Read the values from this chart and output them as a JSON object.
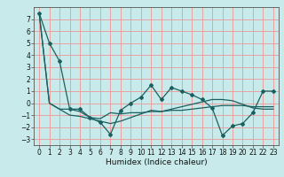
{
  "title": "",
  "xlabel": "Humidex (Indice chaleur)",
  "xlim": [
    -0.5,
    23.5
  ],
  "ylim": [
    -3.5,
    8.0
  ],
  "yticks": [
    -3,
    -2,
    -1,
    0,
    1,
    2,
    3,
    4,
    5,
    6,
    7
  ],
  "xticks": [
    0,
    1,
    2,
    3,
    4,
    5,
    6,
    7,
    8,
    9,
    10,
    11,
    12,
    13,
    14,
    15,
    16,
    17,
    18,
    19,
    20,
    21,
    22,
    23
  ],
  "background_color": "#c8eaea",
  "grid_color": "#e8a0a0",
  "line_color": "#1a6060",
  "series": [
    [
      7.5,
      5.0,
      3.5,
      -0.5,
      -0.5,
      -1.2,
      -1.6,
      -2.6,
      -0.6,
      0.0,
      0.5,
      1.5,
      0.3,
      1.3,
      1.0,
      0.7,
      0.3,
      -0.4,
      -2.7,
      -1.9,
      -1.7,
      -0.8,
      1.0,
      1.0
    ],
    [
      7.5,
      0.0,
      -0.5,
      -0.5,
      -0.7,
      -1.2,
      -1.3,
      -0.8,
      -0.9,
      -0.8,
      -0.8,
      -0.7,
      -0.7,
      -0.6,
      -0.6,
      -0.5,
      -0.4,
      -0.3,
      -0.2,
      -0.2,
      -0.2,
      -0.3,
      -0.3,
      -0.3
    ],
    [
      7.5,
      0.0,
      -0.5,
      -1.0,
      -1.1,
      -1.3,
      -1.5,
      -1.7,
      -1.5,
      -1.2,
      -0.9,
      -0.6,
      -0.7,
      -0.5,
      -0.3,
      -0.1,
      0.1,
      0.3,
      0.3,
      0.2,
      -0.1,
      -0.4,
      -0.5,
      -0.5
    ]
  ],
  "tick_fontsize": 5.5,
  "xlabel_fontsize": 6.5
}
